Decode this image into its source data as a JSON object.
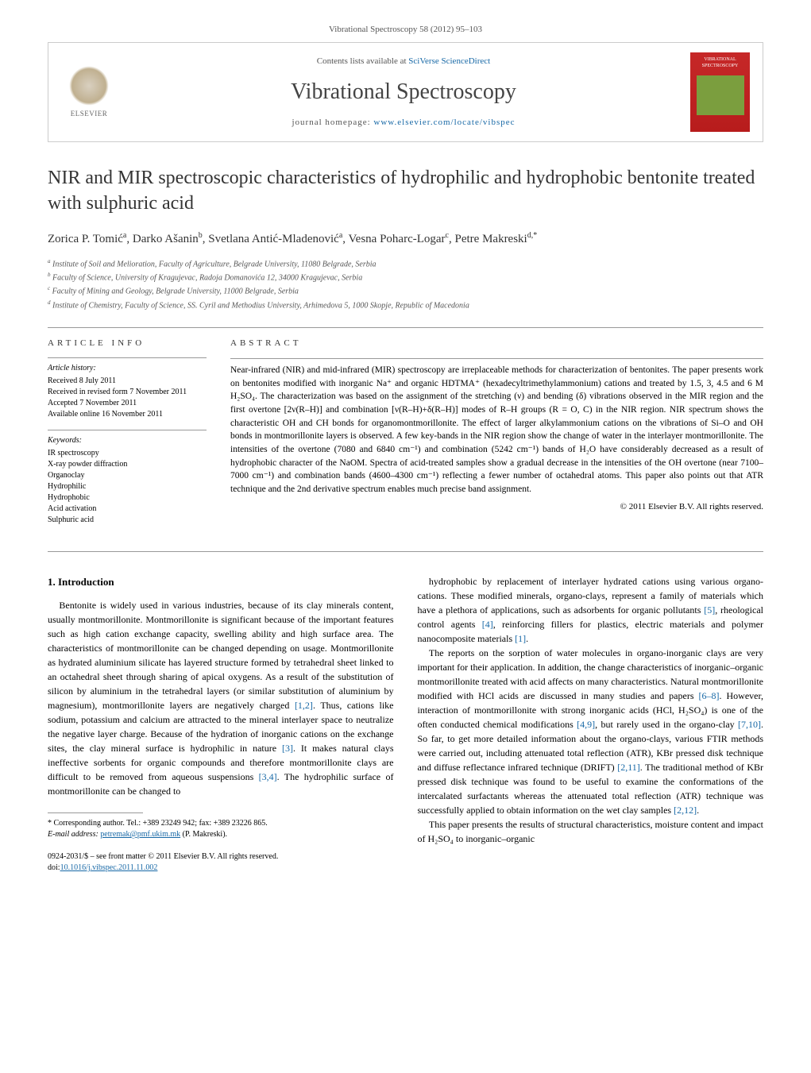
{
  "journal_header": "Vibrational Spectroscopy 58 (2012) 95–103",
  "header": {
    "elsevier_label": "ELSEVIER",
    "contents_prefix": "Contents lists available at ",
    "contents_link": "SciVerse ScienceDirect",
    "journal_name": "Vibrational Spectroscopy",
    "homepage_prefix": "journal homepage: ",
    "homepage_url": "www.elsevier.com/locate/vibspec",
    "cover_title": "VIBRATIONAL SPECTROSCOPY"
  },
  "title": "NIR and MIR spectroscopic characteristics of hydrophilic and hydrophobic bentonite treated with sulphuric acid",
  "authors_html": "Zorica P. Tomić<sup>a</sup>, Darko Ašanin<sup>b</sup>, Svetlana Antić-Mladenović<sup>a</sup>, Vesna Poharc-Logar<sup>c</sup>, Petre Makreski<sup>d,*</sup>",
  "affiliations": [
    "a Institute of Soil and Melioration, Faculty of Agriculture, Belgrade University, 11080 Belgrade, Serbia",
    "b Faculty of Science, University of Kragujevac, Radoja Domanovića 12, 34000 Kragujevac, Serbia",
    "c Faculty of Mining and Geology, Belgrade University, 11000 Belgrade, Serbia",
    "d Institute of Chemistry, Faculty of Science, SS. Cyril and Methodius University, Arhimedova 5, 1000 Skopje, Republic of Macedonia"
  ],
  "article_info": {
    "label": "ARTICLE INFO",
    "history_label": "Article history:",
    "history": [
      "Received 8 July 2011",
      "Received in revised form 7 November 2011",
      "Accepted 7 November 2011",
      "Available online 16 November 2011"
    ],
    "keywords_label": "Keywords:",
    "keywords": [
      "IR spectroscopy",
      "X-ray powder diffraction",
      "Organoclay",
      "Hydrophilic",
      "Hydrophobic",
      "Acid activation",
      "Sulphuric acid"
    ]
  },
  "abstract": {
    "label": "ABSTRACT",
    "text": "Near-infrared (NIR) and mid-infrared (MIR) spectroscopy are irreplaceable methods for characterization of bentonites. The paper presents work on bentonites modified with inorganic Na⁺ and organic HDTMA⁺ (hexadecyltrimethylammonium) cations and treated by 1.5, 3, 4.5 and 6 M H₂SO₄. The characterization was based on the assignment of the stretching (ν) and bending (δ) vibrations observed in the MIR region and the first overtone [2ν(R–H)] and combination [ν(R–H)+δ(R–H)] modes of R–H groups (R = O, C) in the NIR region. NIR spectrum shows the characteristic OH and CH bonds for organomontmorillonite. The effect of larger alkylammonium cations on the vibrations of Si–O and OH bonds in montmorillonite layers is observed. A few key-bands in the NIR region show the change of water in the interlayer montmorillonite. The intensities of the overtone (7080 and 6840 cm⁻¹) and combination (5242 cm⁻¹) bands of H₂O have considerably decreased as a result of hydrophobic character of the NaOM. Spectra of acid-treated samples show a gradual decrease in the intensities of the OH overtone (near 7100–7000 cm⁻¹) and combination bands (4600–4300 cm⁻¹) reflecting a fewer number of octahedral atoms. This paper also points out that ATR technique and the 2nd derivative spectrum enables much precise band assignment.",
    "copyright": "© 2011 Elsevier B.V. All rights reserved."
  },
  "body": {
    "section_heading": "1. Introduction",
    "col1": [
      "Bentonite is widely used in various industries, because of its clay minerals content, usually montmorillonite. Montmorillonite is significant because of the important features such as high cation exchange capacity, swelling ability and high surface area. The characteristics of montmorillonite can be changed depending on usage. Montmorillonite as hydrated aluminium silicate has layered structure formed by tetrahedral sheet linked to an octahedral sheet through sharing of apical oxygens. As a result of the substitution of silicon by aluminium in the tetrahedral layers (or similar substitution of aluminium by magnesium), montmorillonite layers are negatively charged [1,2]. Thus, cations like sodium, potassium and calcium are attracted to the mineral interlayer space to neutralize the negative layer charge. Because of the hydration of inorganic cations on the exchange sites, the clay mineral surface is hydrophilic in nature [3]. It makes natural clays ineffective sorbents for organic compounds and therefore montmorillonite clays are difficult to be removed from aqueous suspensions [3,4]. The hydrophilic surface of montmorillonite can be changed to"
    ],
    "col2": [
      "hydrophobic by replacement of interlayer hydrated cations using various organo-cations. These modified minerals, organo-clays, represent a family of materials which have a plethora of applications, such as adsorbents for organic pollutants [5], rheological control agents [4], reinforcing fillers for plastics, electric materials and polymer nanocomposite materials [1].",
      "The reports on the sorption of water molecules in organo-inorganic clays are very important for their application. In addition, the change characteristics of inorganic–organic montmorillonite treated with acid affects on many characteristics. Natural montmorillonite modified with HCl acids are discussed in many studies and papers [6–8]. However, interaction of montmorillonite with strong inorganic acids (HCl, H₂SO₄) is one of the often conducted chemical modifications [4,9], but rarely used in the organo-clay [7,10]. So far, to get more detailed information about the organo-clays, various FTIR methods were carried out, including attenuated total reflection (ATR), KBr pressed disk technique and diffuse reflectance infrared technique (DRIFT) [2,11]. The traditional method of KBr pressed disk technique was found to be useful to examine the conformations of the intercalated surfactants whereas the attenuated total reflection (ATR) technique was successfully applied to obtain information on the wet clay samples [2,12].",
      "This paper presents the results of structural characteristics, moisture content and impact of H₂SO₄ to inorganic–organic"
    ]
  },
  "footnote": {
    "corresponding": "* Corresponding author. Tel.: +389 23249 942; fax: +389 23226 865.",
    "email_label": "E-mail address: ",
    "email": "petremak@pmf.ukim.mk",
    "email_person": " (P. Makreski)."
  },
  "footer": {
    "issn_line": "0924-2031/$ – see front matter © 2011 Elsevier B.V. All rights reserved.",
    "doi_label": "doi:",
    "doi": "10.1016/j.vibspec.2011.11.002"
  },
  "colors": {
    "link": "#1768a6",
    "text": "#000000",
    "muted": "#555555",
    "border": "#cccccc",
    "cover_bg": "#b71c1c"
  }
}
